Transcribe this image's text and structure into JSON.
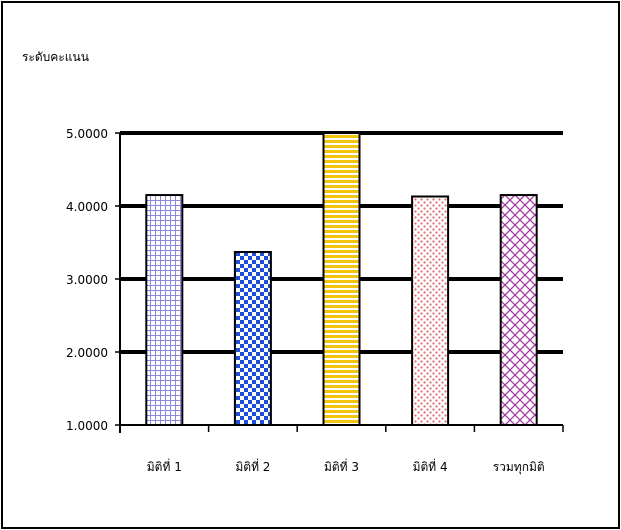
{
  "chart_data": {
    "type": "bar",
    "title": "",
    "ylabel": "ระดับคะแนน",
    "xlabel": "",
    "categories": [
      "มิติที่ 1",
      "มิติที่ 2",
      "มิติที่ 3",
      "มิติที่ 4",
      "รวมทุกมิติ"
    ],
    "values": [
      4.15,
      3.37,
      5.0,
      4.13,
      4.15
    ],
    "ylim": [
      1.0,
      5.0
    ],
    "yticks": [
      "1.0000",
      "2.0000",
      "3.0000",
      "4.0000",
      "5.0000"
    ],
    "grid": true,
    "legend": "none",
    "bar_styles": [
      {
        "pattern": "grid",
        "fill": "#ffffff",
        "color": "#8a8ad8"
      },
      {
        "pattern": "checker",
        "fill": "#ffffff",
        "color": "#1f4fd6"
      },
      {
        "pattern": "horizontal-stripes",
        "fill": "#ffffff",
        "color": "#f2c40e"
      },
      {
        "pattern": "dots",
        "fill": "#ffffff",
        "color": "#e06a6a"
      },
      {
        "pattern": "diagonal-cross",
        "fill": "#ffffff",
        "color": "#a23ba0"
      }
    ]
  }
}
